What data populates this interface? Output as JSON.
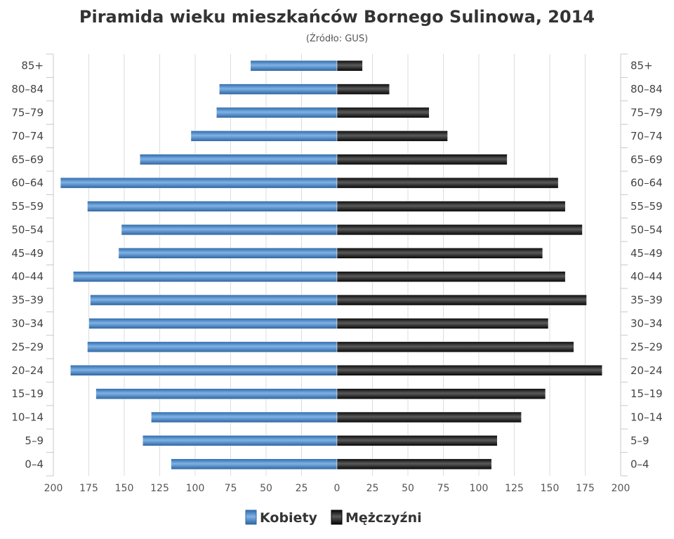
{
  "chart_data": {
    "type": "bar",
    "orientation": "horizontal",
    "layout": "population-pyramid",
    "title": "Piramida wieku mieszkańców Bornego Sulinowa, 2014",
    "subtitle": "(Źródło: GUS)",
    "categories": [
      "85+",
      "80–84",
      "75–79",
      "70–74",
      "65–69",
      "60–64",
      "55–59",
      "50–54",
      "45–49",
      "40–44",
      "35–39",
      "30–34",
      "25–29",
      "20–24",
      "15–19",
      "10–14",
      "5–9",
      "0–4"
    ],
    "series": [
      {
        "name": "Kobiety",
        "color": "#4a86c5",
        "values": [
          61,
          83,
          85,
          103,
          139,
          195,
          176,
          152,
          154,
          186,
          174,
          175,
          176,
          188,
          170,
          131,
          137,
          117
        ]
      },
      {
        "name": "Mężczyźni",
        "color": "#1a1a1a",
        "values": [
          18,
          37,
          65,
          78,
          120,
          156,
          161,
          173,
          145,
          161,
          176,
          149,
          167,
          187,
          147,
          130,
          113,
          109
        ]
      }
    ],
    "x_ticks": [
      "200",
      "175",
      "150",
      "125",
      "100",
      "75",
      "50",
      "25",
      "0",
      "25",
      "50",
      "75",
      "100",
      "125",
      "150",
      "175",
      "200"
    ],
    "xlim": [
      -200,
      200
    ],
    "grid": true,
    "legend_position": "bottom-center"
  }
}
